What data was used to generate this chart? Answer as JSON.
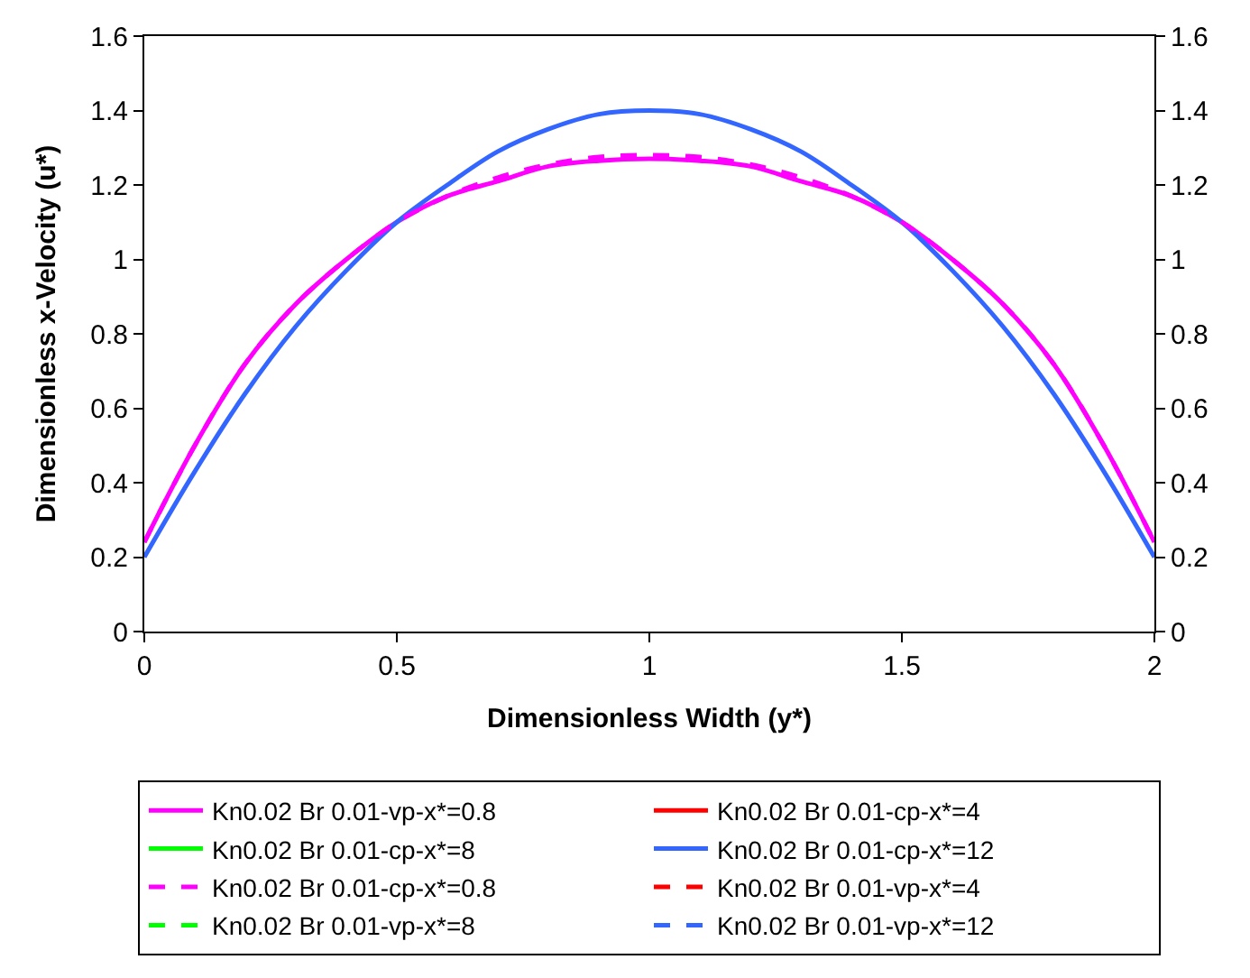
{
  "chart_data": {
    "type": "line",
    "xlabel": "Dimensionless Width (y*)",
    "ylabel": "Dimensionless x-Velocity (u*)",
    "x": [
      0,
      0.1,
      0.2,
      0.3,
      0.4,
      0.5,
      0.6,
      0.7,
      0.8,
      0.9,
      1,
      1.1,
      1.2,
      1.3,
      1.4,
      1.5,
      1.6,
      1.7,
      1.8,
      1.9,
      2
    ],
    "xlim": [
      0,
      2
    ],
    "xticks": [
      0,
      0.5,
      1,
      1.5,
      2
    ],
    "ylim": [
      0,
      1.6
    ],
    "yticks": [
      0,
      0.2,
      0.4,
      0.6,
      0.8,
      1,
      1.2,
      1.4,
      1.6
    ],
    "y2lim": [
      0,
      1.6
    ],
    "y2ticks": [
      0,
      0.2,
      0.4,
      0.6,
      0.8,
      1,
      1.2,
      1.4,
      1.6
    ],
    "legend": "bottom",
    "marker": "none",
    "series": [
      {
        "name": "Kn0.02 Br 0.01-vp-x*=0.8",
        "color": "#ff00ff",
        "line_style": "solid",
        "values": [
          0.24,
          0.5,
          0.72,
          0.88,
          1.0,
          1.1,
          1.17,
          1.21,
          1.25,
          1.265,
          1.27,
          1.265,
          1.25,
          1.21,
          1.17,
          1.1,
          1.0,
          0.88,
          0.72,
          0.5,
          0.24
        ]
      },
      {
        "name": "Kn0.02 Br 0.01-cp-x*=4",
        "color": "#ff0000",
        "line_style": "solid",
        "values": [
          null,
          null,
          null,
          null,
          null,
          null,
          null,
          null,
          null,
          null,
          null,
          null,
          null,
          null,
          null,
          null,
          null,
          null,
          null,
          null,
          null
        ]
      },
      {
        "name": "Kn0.02 Br 0.01-cp-x*=8",
        "color": "#00ff00",
        "line_style": "solid",
        "values": [
          null,
          null,
          null,
          null,
          null,
          null,
          null,
          null,
          null,
          null,
          null,
          null,
          null,
          null,
          null,
          null,
          null,
          null,
          null,
          null,
          null
        ]
      },
      {
        "name": "Kn0.02 Br 0.01-cp-x*=12",
        "color": "#3366ff",
        "line_style": "solid",
        "values": [
          0.2,
          0.43,
          0.64,
          0.82,
          0.97,
          1.1,
          1.2,
          1.29,
          1.35,
          1.39,
          1.4,
          1.39,
          1.35,
          1.29,
          1.2,
          1.1,
          0.97,
          0.82,
          0.64,
          0.43,
          0.2
        ]
      },
      {
        "name": "Kn0.02 Br 0.01-cp-x*=0.8",
        "color": "#ff00ff",
        "line_style": "dashed",
        "values": [
          0.24,
          0.5,
          0.72,
          0.88,
          1.0,
          1.1,
          1.17,
          1.22,
          1.255,
          1.275,
          1.28,
          1.275,
          1.255,
          1.22,
          1.17,
          1.1,
          1.0,
          0.88,
          0.72,
          0.5,
          0.24
        ]
      },
      {
        "name": "Kn0.02 Br 0.01-vp-x*=4",
        "color": "#ff0000",
        "line_style": "dashed",
        "values": [
          null,
          null,
          null,
          null,
          null,
          null,
          null,
          null,
          null,
          null,
          null,
          null,
          null,
          null,
          null,
          null,
          null,
          null,
          null,
          null,
          null
        ]
      },
      {
        "name": "Kn0.02 Br 0.01-vp-x*=8",
        "color": "#00ff00",
        "line_style": "dashed",
        "values": [
          null,
          null,
          null,
          null,
          null,
          null,
          null,
          null,
          null,
          null,
          null,
          null,
          null,
          null,
          null,
          null,
          null,
          null,
          null,
          null,
          null
        ]
      },
      {
        "name": "Kn0.02 Br 0.01-vp-x*=12",
        "color": "#3366ff",
        "line_style": "dashed",
        "values": [
          null,
          null,
          null,
          null,
          null,
          null,
          null,
          null,
          null,
          null,
          null,
          null,
          null,
          null,
          null,
          null,
          null,
          null,
          null,
          null,
          null
        ]
      }
    ]
  }
}
